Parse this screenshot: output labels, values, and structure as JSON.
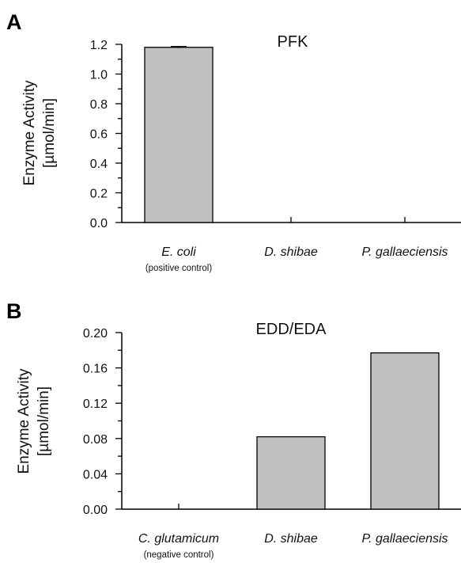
{
  "colors": {
    "bar_fill": "#c0c0c0",
    "axis": "#000000"
  },
  "chart_data": [
    {
      "panel": "A",
      "type": "bar",
      "title": "PFK",
      "ylabel": [
        "Enzyme Activity",
        "[µmol/min]"
      ],
      "xlabel": "",
      "ylim": [
        0,
        1.2
      ],
      "yticks": [
        "0.0",
        "0.2",
        "0.4",
        "0.6",
        "0.8",
        "1.0",
        "1.2"
      ],
      "categories": [
        "E. coli",
        "D. shibae",
        "P. gallaeciensis"
      ],
      "category_notes": [
        "(positive control)",
        "",
        ""
      ],
      "values": [
        1.18,
        0,
        0
      ],
      "error": [
        0.005,
        0,
        0
      ],
      "grid": false,
      "legend": "none"
    },
    {
      "panel": "B",
      "type": "bar",
      "title": "EDD/EDA",
      "ylabel": [
        "Enzyme Activity",
        "[µmol/min]"
      ],
      "xlabel": "",
      "ylim": [
        0,
        0.2
      ],
      "yticks": [
        "0.00",
        "0.04",
        "0.08",
        "0.12",
        "0.16",
        "0.20"
      ],
      "categories": [
        "C. glutamicum",
        "D. shibae",
        "P. gallaeciensis"
      ],
      "category_notes": [
        "(negative control)",
        "",
        ""
      ],
      "values": [
        0,
        0.082,
        0.177
      ],
      "error": [
        0,
        0,
        0
      ],
      "grid": false,
      "legend": "none"
    }
  ]
}
